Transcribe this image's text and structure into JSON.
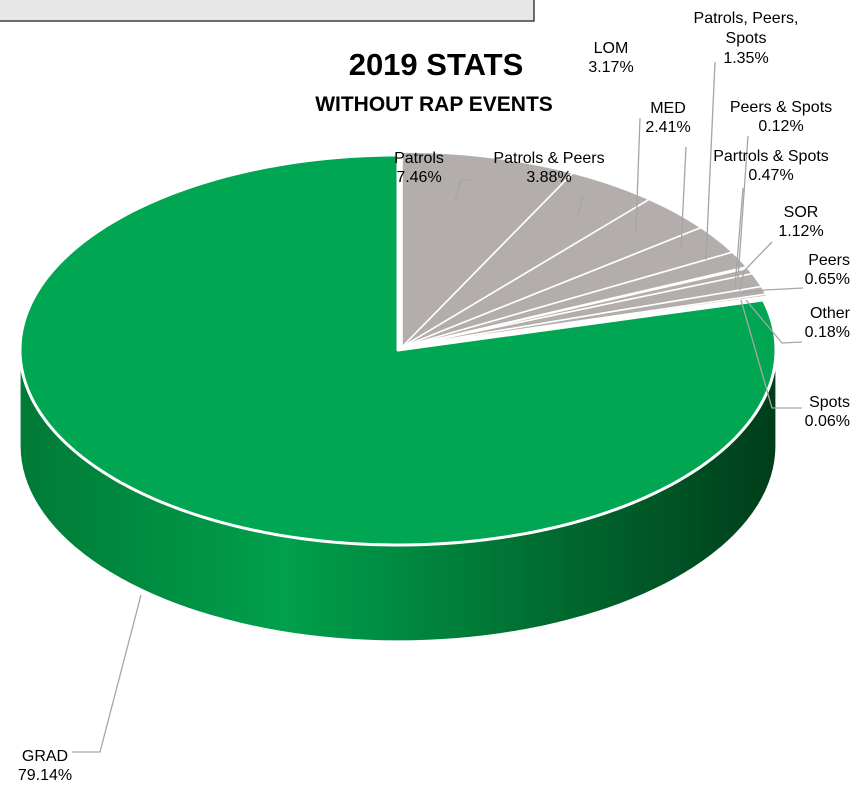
{
  "chart_data": {
    "type": "pie",
    "title": "2019 STATS",
    "subtitle": "WITHOUT RAP EVENTS",
    "colors": {
      "highlight": "#00a651",
      "other": "#b3aeab"
    },
    "slices": [
      {
        "label": "Patrols",
        "value": 7.46,
        "display": "7.46%"
      },
      {
        "label": "Patrols & Peers",
        "value": 3.88,
        "display": "3.88%"
      },
      {
        "label": "LOM",
        "value": 3.17,
        "display": "3.17%"
      },
      {
        "label": "MED",
        "value": 2.41,
        "display": "2.41%"
      },
      {
        "label": "Patrols, Peers, Spots",
        "value": 1.35,
        "display": "1.35%"
      },
      {
        "label": "Peers & Spots",
        "value": 0.12,
        "display": "0.12%"
      },
      {
        "label": "Partrols & Spots",
        "value": 0.47,
        "display": "0.47%"
      },
      {
        "label": "SOR",
        "value": 1.12,
        "display": "1.12%"
      },
      {
        "label": "Peers",
        "value": 0.65,
        "display": "0.65%"
      },
      {
        "label": "Other",
        "value": 0.18,
        "display": "0.18%"
      },
      {
        "label": "Spots",
        "value": 0.06,
        "display": "0.06%"
      },
      {
        "label": "GRAD",
        "value": 79.14,
        "display": "79.14%"
      }
    ]
  }
}
